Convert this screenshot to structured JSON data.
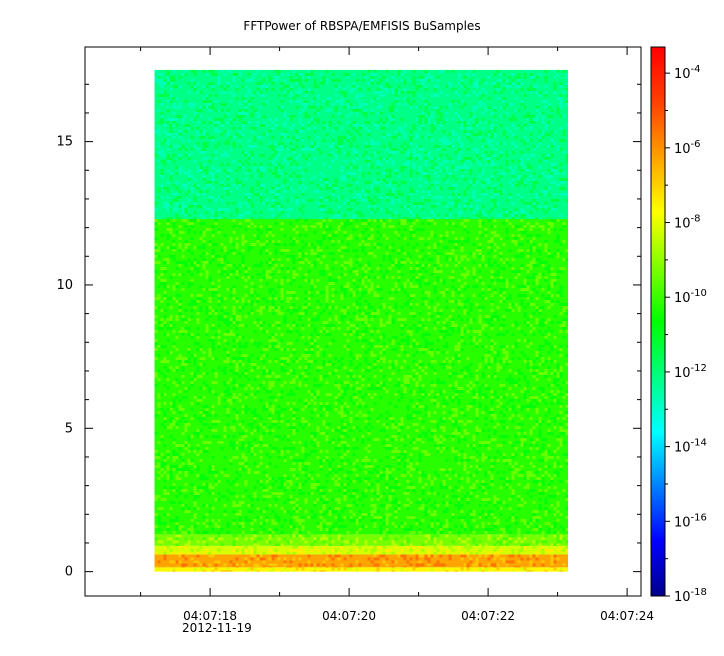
{
  "chart_data": {
    "type": "heatmap",
    "title": "FFTPower of RBSPA/EMFISIS  BuSamples",
    "xlabel": "",
    "ylabel": "",
    "x_axis": {
      "tick_labels": [
        "04:07:18",
        "04:07:20",
        "04:07:22",
        "04:07:24"
      ],
      "tick_seconds": [
        18,
        20,
        22,
        24
      ],
      "minor_tick_seconds": [
        17,
        19,
        21,
        23
      ],
      "range_seconds": [
        16.2,
        24.2
      ],
      "date_label": "2012-11-19"
    },
    "y_axis": {
      "tick_labels": [
        "0",
        "5",
        "10",
        "15"
      ],
      "tick_values": [
        0,
        5,
        10,
        15
      ],
      "range": [
        -0.85,
        18.3
      ]
    },
    "data_extent": {
      "x_seconds": [
        17.2,
        23.15
      ],
      "y": [
        0,
        17.5
      ]
    },
    "colorbar": {
      "scale": "log",
      "range_exponent": [
        -18,
        -3.3
      ],
      "tick_labels": [
        "10-4",
        "10-6",
        "10-8",
        "10-10",
        "10-12",
        "10-14",
        "10-16",
        "10-18"
      ],
      "tick_exponents": [
        -4,
        -6,
        -8,
        -10,
        -12,
        -14,
        -16,
        -18
      ],
      "colors": [
        "#00008b",
        "#0000ff",
        "#0080ff",
        "#00ffff",
        "#00ff80",
        "#00ff00",
        "#80ff00",
        "#ffff00",
        "#ffa000",
        "#ff4000",
        "#ff0000"
      ]
    },
    "bands": [
      {
        "y_from": 0,
        "y_to": 0.15,
        "log10_power": -7.6
      },
      {
        "y_from": 0.15,
        "y_to": 0.6,
        "log10_power": -6.3
      },
      {
        "y_from": 0.6,
        "y_to": 0.9,
        "log10_power": -8.2
      },
      {
        "y_from": 0.9,
        "y_to": 1.3,
        "log10_power": -9.3
      },
      {
        "y_from": 1.3,
        "y_to": 12.3,
        "log10_power": -10.2
      },
      {
        "y_from": 12.3,
        "y_to": 17.5,
        "log10_power": -12.2
      }
    ]
  }
}
